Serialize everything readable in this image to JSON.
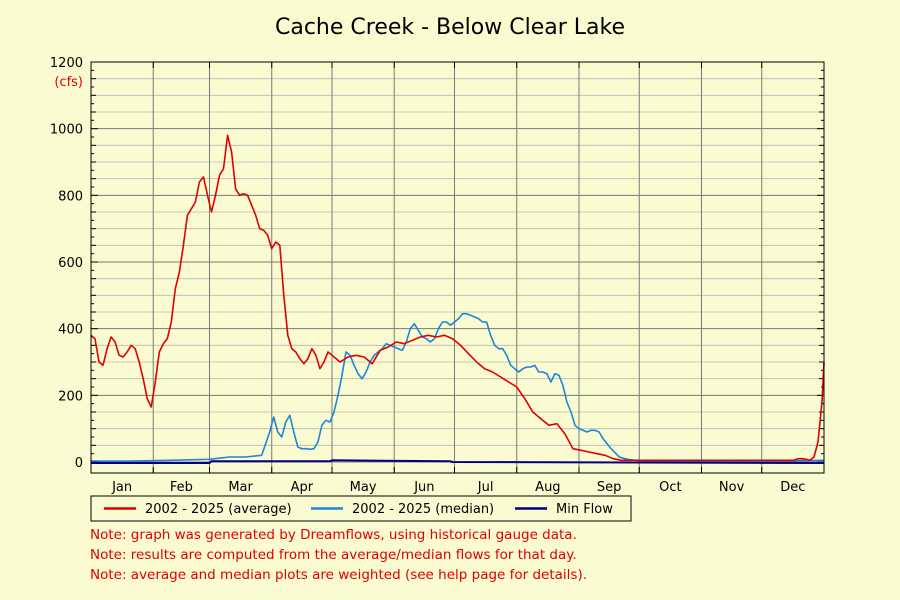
{
  "chart_data": {
    "type": "line",
    "title": "Cache Creek - Below Clear Lake",
    "y_unit": "(cfs)",
    "ylim": [
      0,
      1200
    ],
    "y_ticks": [
      0,
      200,
      400,
      600,
      800,
      1000,
      1200
    ],
    "x_range_days": [
      1,
      366
    ],
    "month_labels": [
      "Jan",
      "Feb",
      "Mar",
      "Apr",
      "May",
      "Jun",
      "Jul",
      "Aug",
      "Sep",
      "Oct",
      "Nov",
      "Dec"
    ],
    "grid": true,
    "legend_placement": "bottom",
    "series": [
      {
        "name": "2002 - 2025 (average)",
        "color": "#e00000",
        "x": [
          1,
          3,
          5,
          7,
          9,
          11,
          13,
          15,
          17,
          19,
          21,
          23,
          25,
          27,
          29,
          31,
          33,
          35,
          37,
          39,
          41,
          43,
          45,
          47,
          49,
          51,
          53,
          55,
          57,
          59,
          61,
          63,
          65,
          67,
          69,
          71,
          73,
          75,
          77,
          79,
          81,
          83,
          85,
          87,
          89,
          91,
          93,
          95,
          97,
          99,
          101,
          103,
          105,
          107,
          109,
          111,
          113,
          115,
          117,
          119,
          121,
          125,
          129,
          133,
          137,
          141,
          145,
          149,
          153,
          157,
          161,
          165,
          169,
          173,
          177,
          181,
          185,
          189,
          193,
          197,
          201,
          205,
          209,
          213,
          217,
          221,
          225,
          229,
          233,
          237,
          241,
          245,
          249,
          253,
          257,
          261,
          265,
          269,
          273,
          277,
          281,
          285,
          289,
          293,
          297,
          301,
          305,
          309,
          313,
          317,
          321,
          325,
          329,
          333,
          337,
          341,
          345,
          349,
          351,
          353,
          355,
          357,
          359,
          361,
          363,
          365,
          366
        ],
        "y": [
          380,
          370,
          300,
          290,
          340,
          375,
          360,
          320,
          315,
          330,
          350,
          340,
          300,
          250,
          190,
          165,
          240,
          330,
          355,
          370,
          420,
          520,
          570,
          650,
          740,
          760,
          780,
          840,
          855,
          800,
          750,
          800,
          860,
          880,
          980,
          930,
          820,
          800,
          805,
          800,
          770,
          740,
          700,
          695,
          680,
          640,
          660,
          650,
          500,
          380,
          340,
          330,
          310,
          295,
          310,
          340,
          320,
          280,
          300,
          330,
          320,
          300,
          315,
          320,
          315,
          295,
          335,
          345,
          360,
          355,
          365,
          375,
          380,
          375,
          380,
          370,
          350,
          325,
          300,
          280,
          270,
          255,
          240,
          225,
          190,
          150,
          130,
          110,
          115,
          85,
          40,
          35,
          30,
          25,
          20,
          10,
          5,
          5,
          5,
          5,
          5,
          5,
          5,
          5,
          5,
          5,
          5,
          5,
          5,
          5,
          5,
          5,
          5,
          5,
          5,
          5,
          5,
          5,
          5,
          10,
          10,
          8,
          5,
          15,
          60,
          180,
          300
        ]
      },
      {
        "name": "2002 - 2025 (median)",
        "color": "#1c86d8",
        "x": [
          1,
          20,
          40,
          60,
          70,
          78,
          86,
          90,
          92,
          94,
          96,
          98,
          100,
          102,
          104,
          106,
          108,
          110,
          112,
          114,
          116,
          118,
          120,
          122,
          124,
          126,
          128,
          130,
          132,
          134,
          136,
          138,
          140,
          142,
          144,
          146,
          148,
          150,
          152,
          154,
          156,
          158,
          160,
          162,
          164,
          166,
          168,
          170,
          172,
          174,
          176,
          178,
          180,
          182,
          184,
          186,
          188,
          190,
          192,
          194,
          196,
          198,
          200,
          202,
          204,
          206,
          208,
          210,
          212,
          214,
          216,
          218,
          220,
          222,
          224,
          226,
          228,
          230,
          232,
          234,
          236,
          238,
          240,
          242,
          244,
          246,
          248,
          250,
          252,
          254,
          256,
          260,
          264,
          268,
          272,
          280,
          300,
          330,
          366
        ],
        "y": [
          3,
          3,
          5,
          8,
          15,
          15,
          20,
          90,
          135,
          90,
          75,
          120,
          140,
          90,
          45,
          40,
          40,
          38,
          40,
          60,
          110,
          125,
          120,
          150,
          200,
          260,
          330,
          320,
          290,
          265,
          250,
          270,
          300,
          320,
          330,
          340,
          355,
          350,
          345,
          340,
          335,
          360,
          400,
          415,
          395,
          375,
          370,
          360,
          370,
          400,
          420,
          420,
          410,
          420,
          430,
          445,
          445,
          440,
          435,
          430,
          420,
          420,
          380,
          350,
          340,
          340,
          320,
          290,
          280,
          270,
          280,
          285,
          285,
          290,
          270,
          270,
          265,
          240,
          265,
          260,
          230,
          180,
          150,
          110,
          100,
          95,
          90,
          95,
          95,
          90,
          70,
          40,
          15,
          8,
          5,
          3,
          2,
          2,
          5
        ]
      },
      {
        "name": "Min Flow",
        "color": "#000080",
        "x": [
          1,
          60,
          61,
          120,
          121,
          180,
          181,
          366
        ],
        "y": [
          -3,
          -3,
          2,
          2,
          5,
          2,
          0,
          -3
        ]
      }
    ]
  },
  "notes": [
    "Note: graph was generated by Dreamflows, using historical gauge data.",
    "Note: results are computed from the average/median flows for that day.",
    "Note: average and median plots are weighted (see help page for details)."
  ]
}
